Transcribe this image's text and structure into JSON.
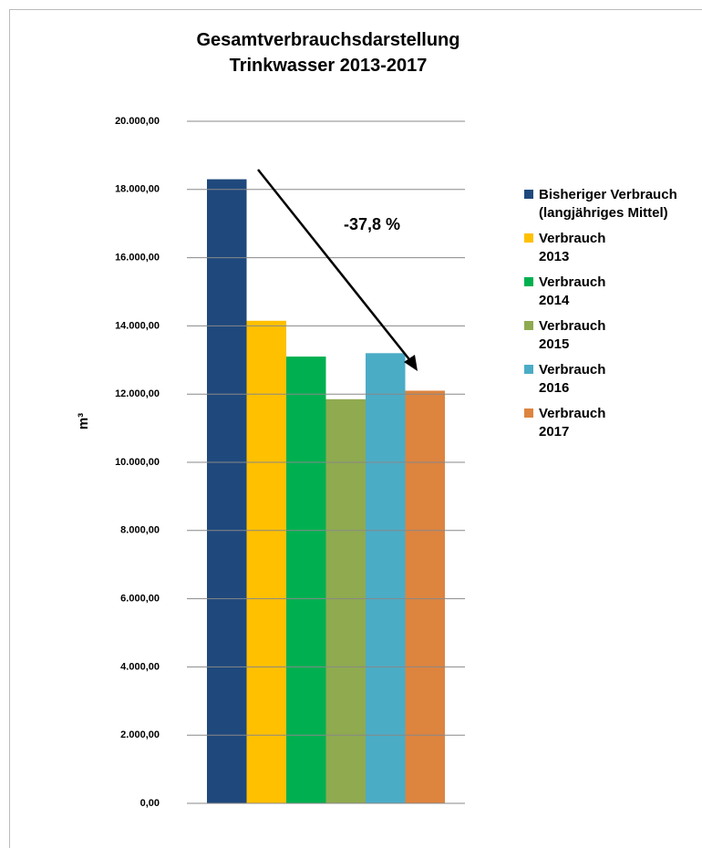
{
  "chart_data": {
    "type": "bar",
    "title": "Gesamtverbrauchsdarstellung Trinkwasser 2013-2017",
    "y_label": "m³",
    "annotation": "-37,8 %",
    "categories": [
      null
    ],
    "series": [
      {
        "name": "Bisheriger Verbrauch (langjähriges Mittel)",
        "color": "#1f497d",
        "values": [
          18300
        ]
      },
      {
        "name": "Verbrauch 2013",
        "color": "#ffc000",
        "values": [
          14150
        ]
      },
      {
        "name": "Verbrauch 2014",
        "color": "#00b050",
        "values": [
          13100
        ]
      },
      {
        "name": "Verbrauch 2015",
        "color": "#8faa4f",
        "values": [
          11850
        ]
      },
      {
        "name": "Verbrauch 2016",
        "color": "#4bacc6",
        "values": [
          13200
        ]
      },
      {
        "name": "Verbrauch 2017",
        "color": "#dd843f",
        "values": [
          12100
        ]
      }
    ],
    "ylim": [
      0,
      20000
    ],
    "yticks": [
      {
        "value": 0,
        "label": "0,00"
      },
      {
        "value": 2000,
        "label": "2.000,00"
      },
      {
        "value": 4000,
        "label": "4.000,00"
      },
      {
        "value": 6000,
        "label": "6.000,00"
      },
      {
        "value": 8000,
        "label": "8.000,00"
      },
      {
        "value": 10000,
        "label": "10.000,00"
      },
      {
        "value": 12000,
        "label": "12.000,00"
      },
      {
        "value": 14000,
        "label": "14.000,00"
      },
      {
        "value": 16000,
        "label": "16.000,00"
      },
      {
        "value": 18000,
        "label": "18.000,00"
      },
      {
        "value": 20000,
        "label": "20.000,00"
      }
    ],
    "grid": true,
    "legend": "right"
  }
}
